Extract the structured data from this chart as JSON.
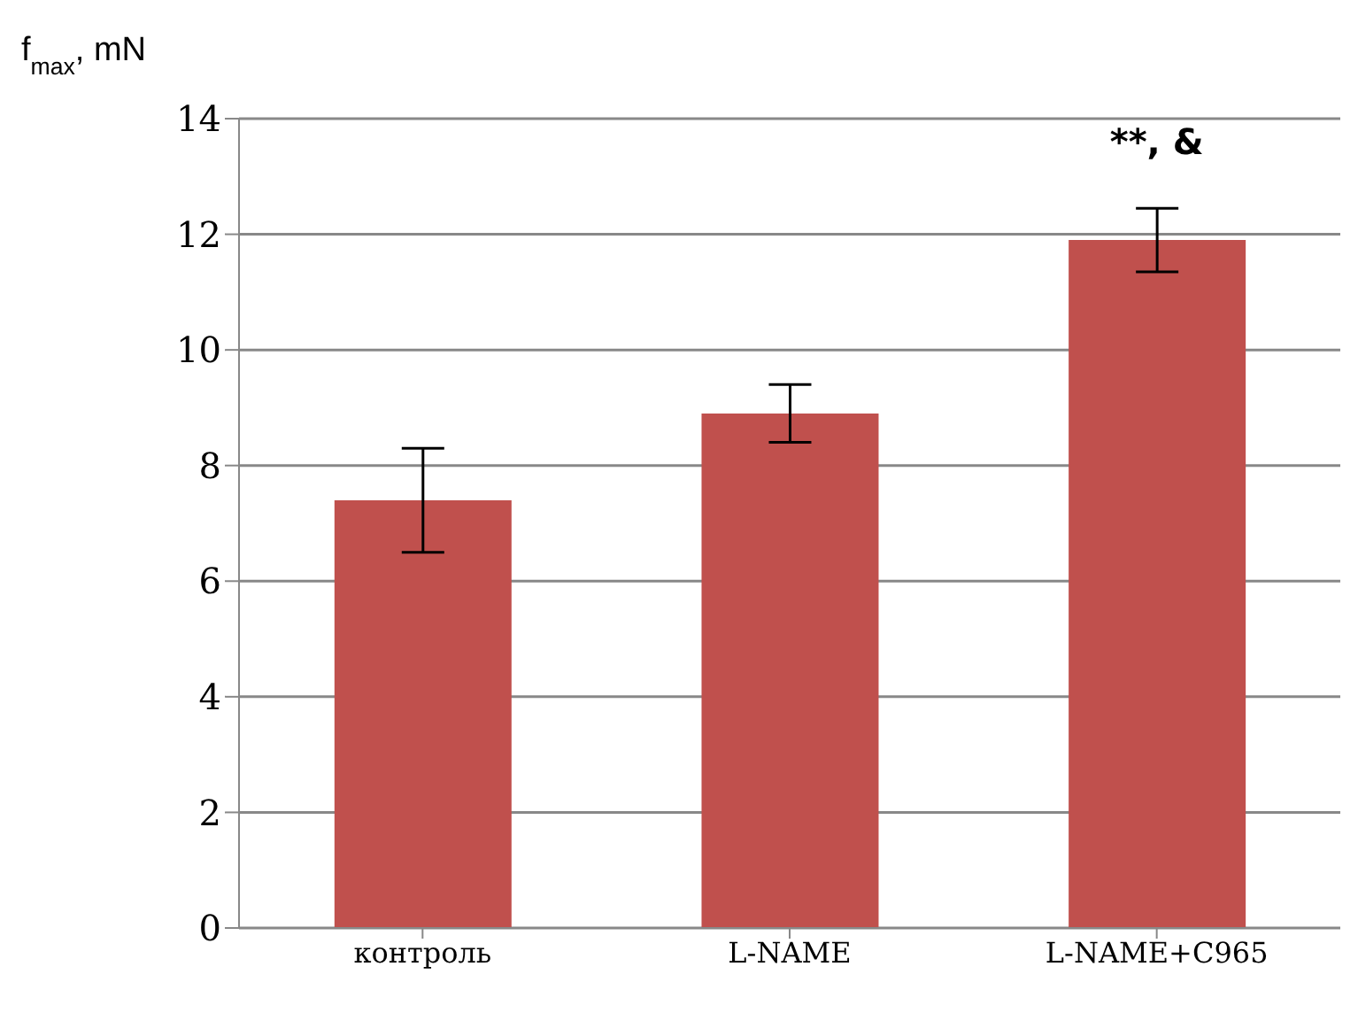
{
  "chart_data": {
    "type": "bar",
    "ylabel": "f$_{max}$, mN",
    "categories": [
      "контроль",
      "L-NAME",
      "L-NAME+C965"
    ],
    "series": [
      {
        "color": "#c0504d",
        "values": [
          7.4,
          8.9,
          11.9
        ],
        "errors": [
          0.9,
          0.5,
          0.55
        ]
      }
    ],
    "ylim": [
      0,
      14
    ],
    "yticks": [
      0,
      2,
      4,
      6,
      8,
      10,
      12,
      14
    ],
    "grid": "y",
    "legend": false,
    "annotations": [
      "**, &"
    ]
  }
}
